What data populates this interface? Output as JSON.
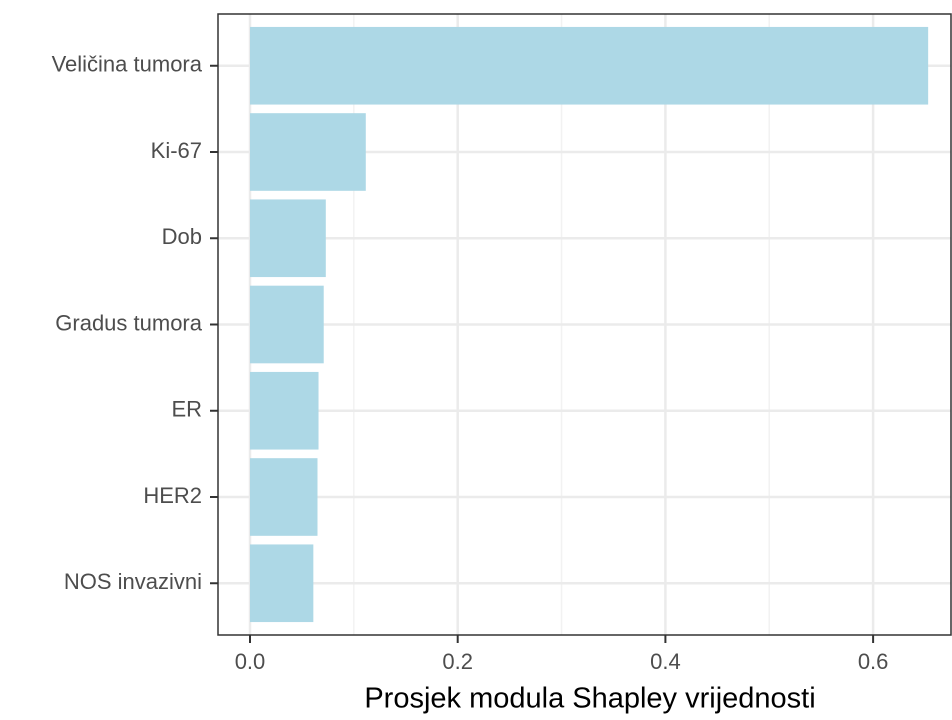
{
  "chart_data": {
    "type": "bar",
    "orientation": "horizontal",
    "x_label": "Prosjek modula Shapley vrijednosti",
    "categories": [
      "Veličina tumora",
      "Ki-67",
      "Dob",
      "Gradus tumora",
      "ER",
      "HER2",
      "NOS invazivni"
    ],
    "values": [
      0.653,
      0.1115,
      0.073,
      0.071,
      0.066,
      0.065,
      0.061
    ],
    "color": "#add8e6",
    "xlim": [
      -0.0308,
      0.675
    ],
    "xticks": [
      {
        "value": 0,
        "label": "0.0"
      },
      0.2,
      0.4,
      0.6
    ],
    "grid": true,
    "minor_grid": true
  }
}
